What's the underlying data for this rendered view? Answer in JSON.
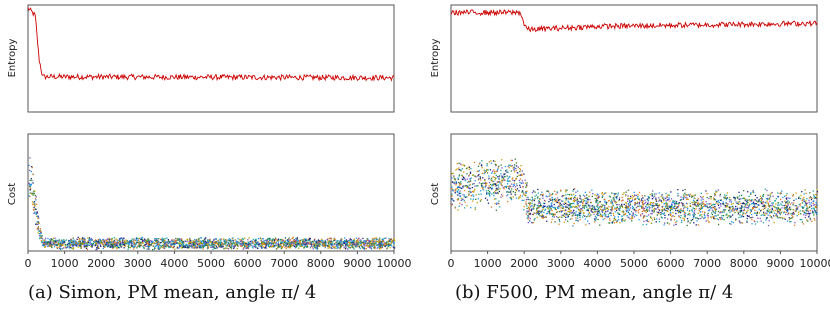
{
  "chart_data": [
    {
      "type": "line",
      "panel": "a-top",
      "ylabel": "Entropy",
      "xlim": [
        0,
        10000
      ],
      "ylim": [
        0,
        1
      ],
      "series": [
        {
          "color": "#cc0000",
          "x": [
            0,
            200,
            300,
            400,
            10000
          ],
          "y": [
            0.97,
            0.9,
            0.5,
            0.33,
            0.32
          ]
        }
      ]
    },
    {
      "type": "scatter",
      "panel": "a-bottom",
      "ylabel": "Cost",
      "xlim": [
        0,
        10000
      ],
      "ylim": [
        0,
        1
      ],
      "xticks": [
        0,
        1000,
        2000,
        3000,
        4000,
        5000,
        6000,
        7000,
        8000,
        9000,
        10000
      ],
      "profile": {
        "x": [
          0,
          100,
          200,
          300,
          400,
          10000
        ],
        "y": [
          0.6,
          0.55,
          0.35,
          0.15,
          0.07,
          0.07
        ]
      }
    },
    {
      "type": "line",
      "panel": "b-top",
      "ylabel": "Entropy",
      "xlim": [
        0,
        10000
      ],
      "ylim": [
        0,
        1
      ],
      "series": [
        {
          "color": "#cc0000",
          "x": [
            0,
            1900,
            2000,
            2100,
            4000,
            10000
          ],
          "y": [
            0.93,
            0.93,
            0.82,
            0.77,
            0.8,
            0.83
          ]
        }
      ]
    },
    {
      "type": "scatter",
      "panel": "b-bottom",
      "ylabel": "Cost",
      "xlim": [
        0,
        10000
      ],
      "ylim": [
        0,
        1
      ],
      "xticks": [
        0,
        1000,
        2000,
        3000,
        4000,
        5000,
        6000,
        7000,
        8000,
        9000,
        10000
      ],
      "xtick_labels": [
        "0",
        "1000",
        "2000",
        "3000",
        "4000",
        "5000",
        "6000",
        "7000",
        "8000",
        "9000",
        "10000"
      ],
      "profile": {
        "x": [
          0,
          1900,
          2000,
          2100,
          10000
        ],
        "y": [
          0.55,
          0.6,
          0.5,
          0.38,
          0.38
        ]
      }
    }
  ],
  "captions": {
    "a": "(a) Simon, PM mean, angle π/ 4",
    "b": "(b) F500, PM mean, angle π/ 4"
  },
  "colors": {
    "line": "#cc0000",
    "scatter": [
      "#1a237e",
      "#2e7d32",
      "#26a69a",
      "#c0a000",
      "#e67e22",
      "#7e57c2",
      "#2196f3"
    ]
  }
}
